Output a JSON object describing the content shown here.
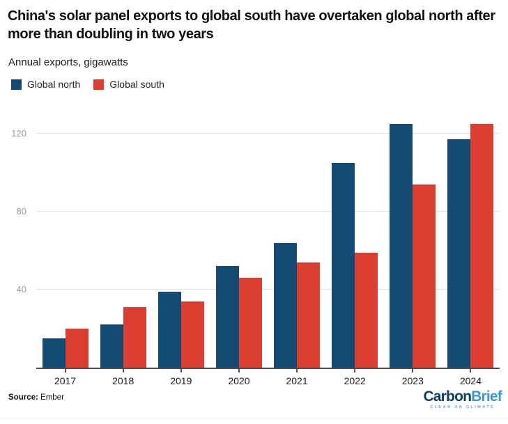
{
  "title": "China's solar panel exports to global south have overtaken global north after more than doubling in two years",
  "subtitle": "Annual exports, gigawatts",
  "chart_data": {
    "type": "bar",
    "title": "China's solar panel exports to global south have overtaken global north after more than doubling in two years",
    "subtitle": "Annual exports, gigawatts",
    "categories": [
      "2017",
      "2018",
      "2019",
      "2020",
      "2021",
      "2022",
      "2023",
      "2024"
    ],
    "series": [
      {
        "name": "Global north",
        "color": "#124a73",
        "values": [
          15,
          22,
          39,
          52,
          64,
          105,
          125,
          117
        ]
      },
      {
        "name": "Global south",
        "color": "#dd3e32",
        "values": [
          20,
          31,
          34,
          46,
          54,
          59,
          94,
          125
        ]
      }
    ],
    "xlabel": "",
    "ylabel": "Annual exports, gigawatts",
    "yticks": [
      40,
      80,
      120
    ],
    "ylim": [
      0,
      129.2
    ],
    "grid": true,
    "legend_position": "top-left"
  },
  "footer": {
    "source_label": "Source:",
    "source_value": "Ember",
    "logo": {
      "part1": "Carbon",
      "part2": "Brief",
      "tagline": "CLEAR ON CLIMATE"
    }
  }
}
